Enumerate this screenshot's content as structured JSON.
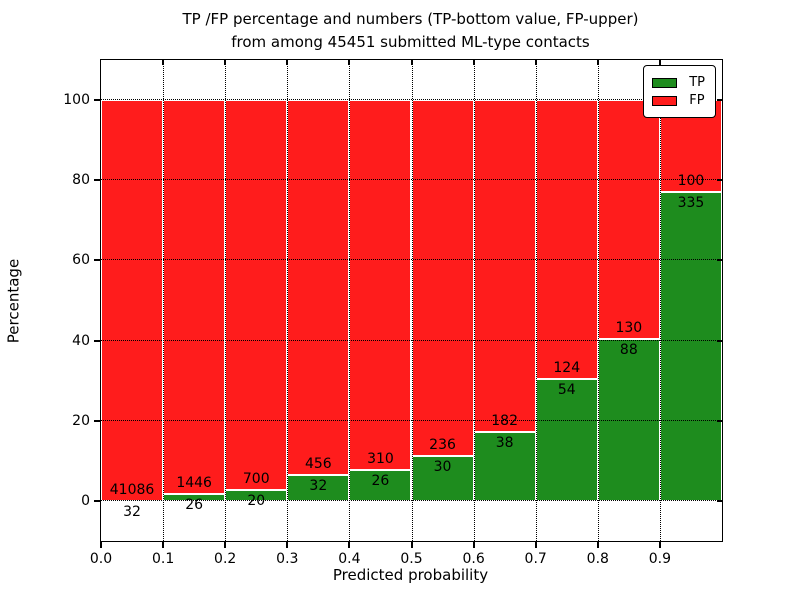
{
  "title": {
    "line1": "TP /FP percentage and numbers (TP-bottom value, FP-upper)",
    "line2": "from among 45451 submitted ML-type contacts"
  },
  "chart_data": {
    "type": "bar",
    "stacked": true,
    "normalized_to_percent": true,
    "title": "TP /FP percentage and numbers (TP-bottom value, FP-upper) from among 45451 submitted ML-type contacts",
    "total_contacts": 45451,
    "xlabel": "Predicted probability",
    "ylabel": "Percentage",
    "xlim": [
      0.0,
      1.0
    ],
    "ylim": [
      -10,
      110
    ],
    "bin_width": 0.1,
    "grid": "dotted",
    "legend_position": "upper right",
    "categories": [
      0.0,
      0.1,
      0.2,
      0.3,
      0.4,
      0.5,
      0.6,
      0.7,
      0.8,
      0.9
    ],
    "x_tick_labels": [
      "0.0",
      "0.1",
      "0.2",
      "0.3",
      "0.4",
      "0.5",
      "0.6",
      "0.7",
      "0.8",
      "0.9"
    ],
    "y_ticks": [
      0,
      20,
      40,
      60,
      80,
      100
    ],
    "y_tick_labels": [
      "0",
      "20",
      "40",
      "60",
      "80",
      "100"
    ],
    "series": [
      {
        "name": "TP",
        "color": "#1e8c1e",
        "counts": [
          32,
          26,
          20,
          32,
          26,
          30,
          38,
          54,
          88,
          335
        ],
        "pct": [
          0.08,
          1.77,
          2.78,
          6.56,
          7.74,
          11.28,
          17.27,
          30.34,
          40.37,
          77.01
        ]
      },
      {
        "name": "FP",
        "color": "#ff1c1c",
        "counts": [
          41086,
          1446,
          700,
          456,
          310,
          236,
          182,
          124,
          130,
          100
        ],
        "pct": [
          99.92,
          98.23,
          97.22,
          93.44,
          92.26,
          88.72,
          82.73,
          69.66,
          59.63,
          22.99
        ]
      }
    ]
  }
}
